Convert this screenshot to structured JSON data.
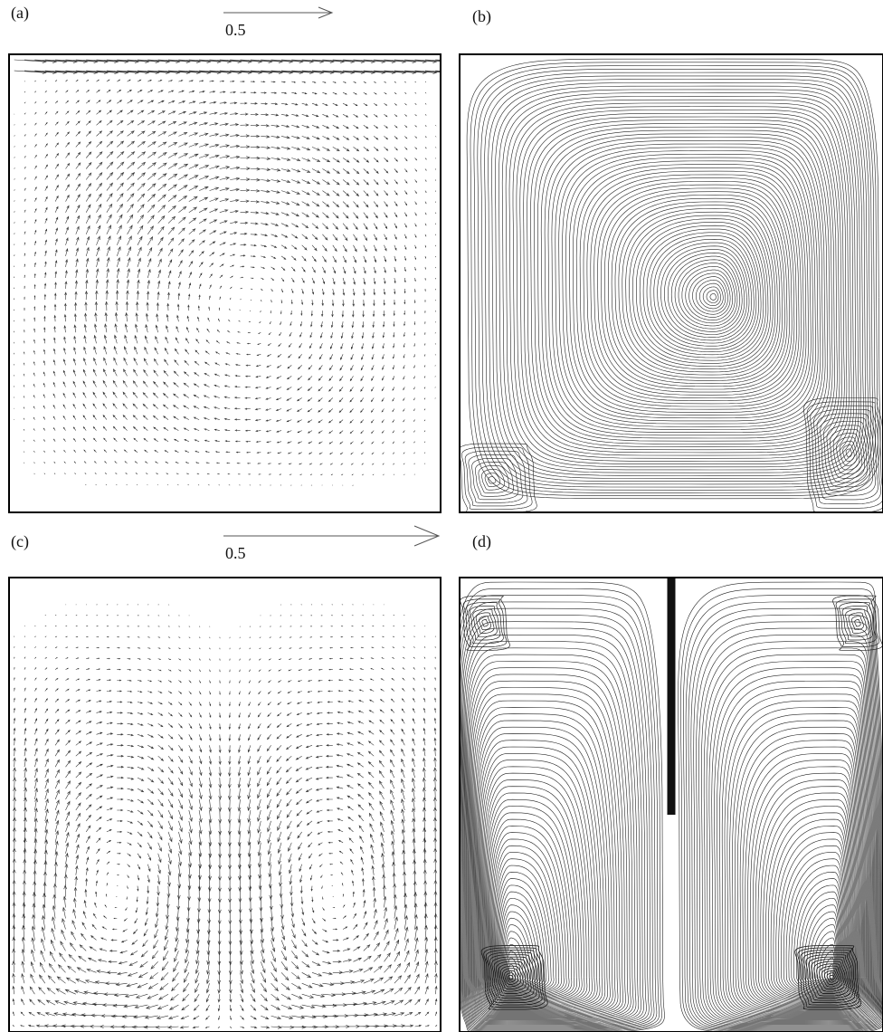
{
  "panels": [
    {
      "label": "(a)",
      "scale_label": "0.5"
    },
    {
      "label": "(b)"
    },
    {
      "label": "(c)",
      "scale_label": "0.5"
    },
    {
      "label": "(d)"
    }
  ]
}
